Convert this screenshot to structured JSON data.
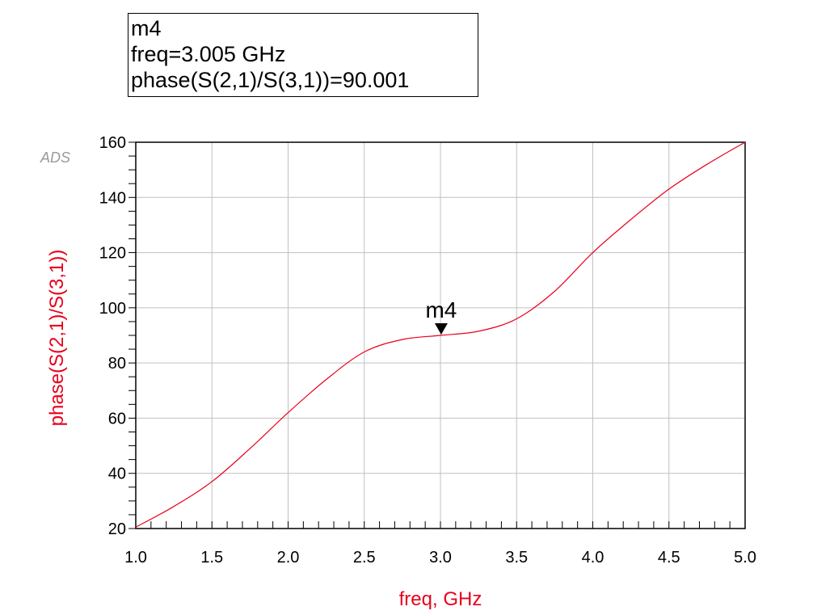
{
  "marker_readout": {
    "name": "m4",
    "freq_line": "freq=3.005 GHz",
    "value_line": "phase(S(2,1)/S(3,1))=90.001"
  },
  "logo": "ADS",
  "colors": {
    "trace": "#e8001c",
    "axis_title": "#e8001c",
    "grid": "#c0c0c0"
  },
  "chart_data": {
    "type": "line",
    "xlabel": "freq, GHz",
    "ylabel": "phase(S(2,1)/S(3,1))",
    "xlim": [
      1.0,
      5.0
    ],
    "ylim": [
      20,
      160
    ],
    "x_ticks": [
      "1.0",
      "1.5",
      "2.0",
      "2.5",
      "3.0",
      "3.5",
      "4.0",
      "4.5",
      "5.0"
    ],
    "y_ticks": [
      "20",
      "40",
      "60",
      "80",
      "100",
      "120",
      "140",
      "160"
    ],
    "grid": true,
    "series": [
      {
        "x": [
          1.0,
          1.25,
          1.5,
          1.75,
          2.0,
          2.25,
          2.5,
          2.75,
          3.0,
          3.25,
          3.5,
          3.75,
          4.0,
          4.25,
          4.5,
          4.75,
          5.0
        ],
        "values": [
          20.5,
          28,
          37,
          49,
          62,
          74,
          84,
          88.5,
          90,
          91.5,
          96,
          106,
          120,
          132,
          143,
          152,
          160
        ]
      }
    ],
    "markers": [
      {
        "label": "m4",
        "x": 3.005,
        "y": 90.001
      }
    ]
  }
}
